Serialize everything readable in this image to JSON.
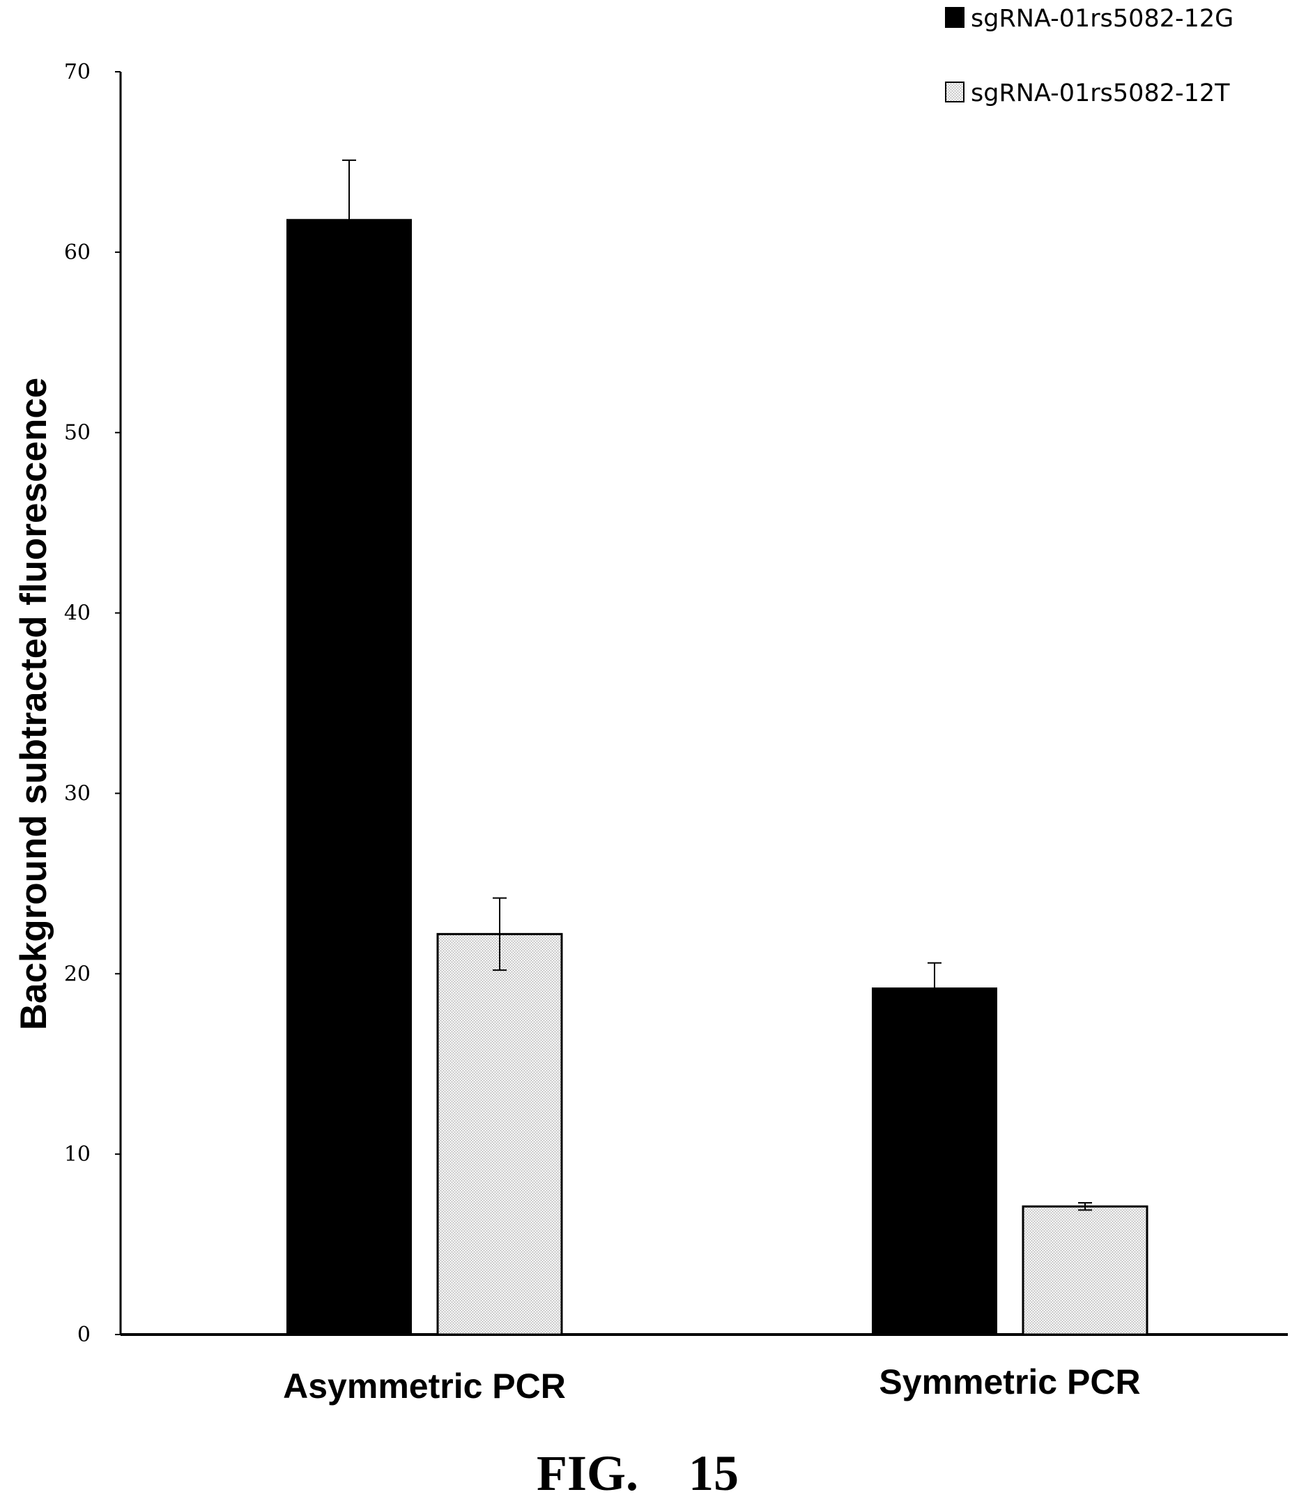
{
  "chart_data": {
    "type": "bar",
    "categories": [
      "Asymmetric PCR",
      "Symmetric PCR"
    ],
    "series": [
      {
        "name": "sgRNA-01rs5082-12G",
        "color": "#000000",
        "values": [
          61.8,
          19.2
        ],
        "error": [
          3.3,
          1.4
        ]
      },
      {
        "name": "sgRNA-01rs5082-12T",
        "color": "#e3e3e3",
        "values": [
          22.2,
          7.1
        ],
        "error": [
          2.0,
          0.2
        ]
      }
    ],
    "ylabel": "Background subtracted fluorescence",
    "xlabel": "",
    "ylim": [
      0,
      70
    ],
    "yticks": [
      0,
      10,
      20,
      30,
      40,
      50,
      60,
      70
    ],
    "grid": false,
    "legend_position": "top-right"
  },
  "caption": "FIG.    15"
}
